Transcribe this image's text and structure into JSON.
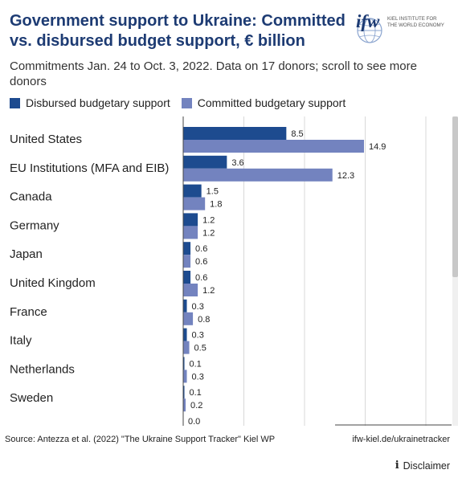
{
  "header": {
    "title": "Government support to Ukraine: Committed vs. disbursed budget support, € billion",
    "subtitle": "Commitments Jan. 24 to Oct. 3, 2022. Data on 17 donors; scroll to see more donors",
    "logo": {
      "mark": "ifw",
      "text_line1": "KIEL INSTITUTE FOR",
      "text_line2": "THE WORLD ECONOMY",
      "icon": "globe-icon"
    }
  },
  "legend": [
    {
      "label": "Disbursed budgetary support",
      "color": "#1d4b8f"
    },
    {
      "label": "Committed budgetary support",
      "color": "#7383bf"
    }
  ],
  "chart_data": {
    "type": "bar",
    "orientation": "horizontal",
    "title": "Government support to Ukraine: Committed vs. disbursed budget support, € billion",
    "subtitle": "Commitments Jan. 24 to Oct. 3, 2022. Data on 17 donors; scroll to see more donors",
    "categories": [
      "United States",
      "EU Institutions (MFA and EIB)",
      "Canada",
      "Germany",
      "Japan",
      "United Kingdom",
      "France",
      "Italy",
      "Netherlands",
      "Sweden",
      ""
    ],
    "series": [
      {
        "name": "Disbursed budgetary support",
        "color": "#1d4b8f",
        "values": [
          8.5,
          3.6,
          1.5,
          1.2,
          0.6,
          0.6,
          0.3,
          0.3,
          0.1,
          0.1,
          0.0
        ]
      },
      {
        "name": "Committed budgetary support",
        "color": "#7383bf",
        "values": [
          14.9,
          12.3,
          1.8,
          1.2,
          0.6,
          1.2,
          0.8,
          0.5,
          0.3,
          0.2,
          null
        ]
      }
    ],
    "xlim": [
      0,
      20
    ],
    "gridlines": [
      5,
      10,
      15,
      20
    ],
    "grid": true,
    "legend_position": "top-left",
    "scrollable": true
  },
  "footer": {
    "source": "Source: Antezza et al. (2022) \"The Ukraine Support Tracker\" Kiel WP",
    "site": "ifw-kiel.de/ukrainetracker",
    "disclaimer": "Disclaimer",
    "disclaimer_icon": "info-icon"
  }
}
